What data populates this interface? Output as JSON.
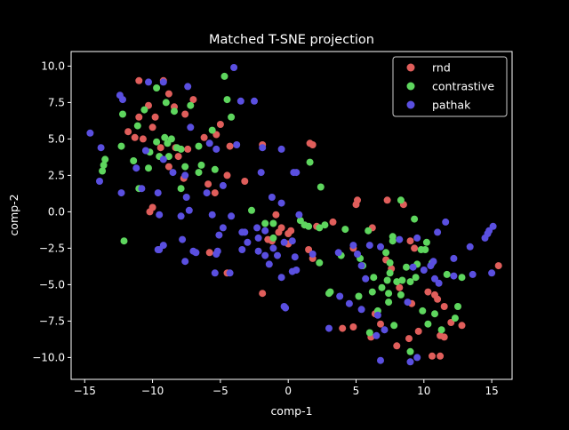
{
  "chart_data": {
    "type": "scatter",
    "title": "Matched T-SNE projection",
    "xlabel": "comp-1",
    "ylabel": "comp-2",
    "xlim": [
      -16,
      16.5
    ],
    "ylim": [
      -11.5,
      11
    ],
    "xticks": [
      -15,
      -10,
      -5,
      0,
      5,
      10,
      15
    ],
    "yticks": [
      -10.0,
      -7.5,
      -5.0,
      -2.5,
      0.0,
      2.5,
      5.0,
      7.5,
      10.0
    ],
    "xtick_labels": [
      "−15",
      "−10",
      "−5",
      "0",
      "5",
      "10",
      "15"
    ],
    "ytick_labels": [
      "−10.0",
      "−7.5",
      "−5.0",
      "−2.5",
      "0.0",
      "2.5",
      "5.0",
      "7.5",
      "10.0"
    ],
    "grid": false,
    "legend_position": "upper right",
    "series": [
      {
        "name": "rnd",
        "color": "#e05e5b",
        "points": [
          [
            -11.0,
            9.0
          ],
          [
            -9.2,
            9.0
          ],
          [
            -10.3,
            7.3
          ],
          [
            -8.4,
            7.2
          ],
          [
            -8.8,
            8.1
          ],
          [
            -11.0,
            6.5
          ],
          [
            -9.8,
            6.5
          ],
          [
            -10.0,
            5.8
          ],
          [
            -7.0,
            7.7
          ],
          [
            -7.6,
            6.7
          ],
          [
            -11.8,
            5.5
          ],
          [
            -11.3,
            5.1
          ],
          [
            -10.7,
            5.0
          ],
          [
            -9.4,
            4.4
          ],
          [
            -8.3,
            4.4
          ],
          [
            -7.4,
            4.3
          ],
          [
            -6.2,
            5.1
          ],
          [
            -5.0,
            6.0
          ],
          [
            -5.3,
            5.3
          ],
          [
            -4.3,
            4.5
          ],
          [
            -8.1,
            3.8
          ],
          [
            -8.8,
            3.1
          ],
          [
            -7.7,
            2.3
          ],
          [
            -5.9,
            1.9
          ],
          [
            -5.4,
            1.3
          ],
          [
            -4.5,
            2.5
          ],
          [
            -3.2,
            2.1
          ],
          [
            -10.0,
            0.3
          ],
          [
            -10.2,
            0.0
          ],
          [
            -1.9,
            4.6
          ],
          [
            1.6,
            4.7
          ],
          [
            1.8,
            4.6
          ],
          [
            -0.9,
            -0.2
          ],
          [
            -0.7,
            -1.4
          ],
          [
            -0.5,
            -1.1
          ],
          [
            -1.5,
            -1.9
          ],
          [
            -1.2,
            -2.0
          ],
          [
            0.0,
            -1.5
          ],
          [
            0.2,
            -1.3
          ],
          [
            0.0,
            -2.2
          ],
          [
            2.1,
            -1.0
          ],
          [
            3.3,
            -0.7
          ],
          [
            4.8,
            -2.5
          ],
          [
            5.0,
            0.5
          ],
          [
            5.1,
            0.8
          ],
          [
            6.2,
            -1.1
          ],
          [
            7.3,
            0.8
          ],
          [
            8.5,
            0.5
          ],
          [
            9.0,
            -2.0
          ],
          [
            9.3,
            -2.5
          ],
          [
            -5.8,
            -2.8
          ],
          [
            -4.5,
            -4.2
          ],
          [
            -1.9,
            -5.6
          ],
          [
            1.5,
            -2.6
          ],
          [
            1.8,
            -3.2
          ],
          [
            4.0,
            -8.0
          ],
          [
            6.1,
            -8.6
          ],
          [
            6.4,
            -7.0
          ],
          [
            7.2,
            -3.3
          ],
          [
            7.6,
            -3.9
          ],
          [
            8.2,
            -5.2
          ],
          [
            8.9,
            -8.7
          ],
          [
            9.1,
            -6.3
          ],
          [
            9.6,
            -8.2
          ],
          [
            10.3,
            -5.5
          ],
          [
            10.8,
            -5.7
          ],
          [
            11.0,
            -6.0
          ],
          [
            11.5,
            -6.5
          ],
          [
            11.2,
            -8.5
          ],
          [
            11.5,
            -8.6
          ],
          [
            12.0,
            -7.6
          ],
          [
            10.6,
            -9.9
          ],
          [
            11.2,
            -9.9
          ],
          [
            12.8,
            -7.8
          ],
          [
            15.5,
            -3.7
          ],
          [
            4.8,
            -7.9
          ],
          [
            6.8,
            -7.7
          ],
          [
            8.0,
            -9.2
          ]
        ]
      },
      {
        "name": "contrastive",
        "color": "#5ed65e",
        "points": [
          [
            -12.2,
            6.7
          ],
          [
            -11.1,
            5.9
          ],
          [
            -10.6,
            7.0
          ],
          [
            -9.7,
            8.5
          ],
          [
            -9.0,
            7.5
          ],
          [
            -8.4,
            6.9
          ],
          [
            -7.2,
            7.3
          ],
          [
            -6.6,
            4.5
          ],
          [
            -4.7,
            9.3
          ],
          [
            -4.5,
            7.7
          ],
          [
            -4.2,
            6.5
          ],
          [
            -5.6,
            5.6
          ],
          [
            -9.1,
            5.1
          ],
          [
            -8.9,
            4.7
          ],
          [
            -8.6,
            5.0
          ],
          [
            -8.2,
            4.4
          ],
          [
            -7.9,
            4.3
          ],
          [
            -9.7,
            4.8
          ],
          [
            -9.5,
            3.8
          ],
          [
            -8.8,
            3.8
          ],
          [
            -10.2,
            4.1
          ],
          [
            -12.3,
            4.5
          ],
          [
            -13.6,
            3.2
          ],
          [
            -13.5,
            3.6
          ],
          [
            -13.7,
            2.8
          ],
          [
            -11.4,
            3.5
          ],
          [
            -10.3,
            3.0
          ],
          [
            -7.6,
            3.1
          ],
          [
            -6.4,
            3.2
          ],
          [
            -5.4,
            2.9
          ],
          [
            -6.6,
            2.7
          ],
          [
            -7.9,
            1.6
          ],
          [
            -11.0,
            1.6
          ],
          [
            -12.1,
            -2.0
          ],
          [
            1.6,
            3.4
          ],
          [
            2.4,
            1.7
          ],
          [
            -2.7,
            0.1
          ],
          [
            -1.7,
            -0.8
          ],
          [
            -1.1,
            -0.8
          ],
          [
            -1.1,
            -1.8
          ],
          [
            0.9,
            -0.6
          ],
          [
            1.2,
            -0.9
          ],
          [
            1.5,
            -1.0
          ],
          [
            2.7,
            -0.9
          ],
          [
            2.3,
            -3.5
          ],
          [
            3.0,
            -5.6
          ],
          [
            3.1,
            -5.5
          ],
          [
            5.3,
            -3.2
          ],
          [
            5.5,
            -3.7
          ],
          [
            5.2,
            -5.8
          ],
          [
            6.2,
            -5.5
          ],
          [
            6.9,
            -5.2
          ],
          [
            6.3,
            -4.5
          ],
          [
            7.5,
            -4.2
          ],
          [
            7.5,
            -3.5
          ],
          [
            7.3,
            -4.7
          ],
          [
            7.4,
            -5.6
          ],
          [
            8.0,
            -4.8
          ],
          [
            8.4,
            -4.7
          ],
          [
            9.0,
            -4.8
          ],
          [
            8.7,
            -3.8
          ],
          [
            9.5,
            -3.6
          ],
          [
            9.8,
            -2.6
          ],
          [
            10.1,
            -2.6
          ],
          [
            10.2,
            -2.1
          ],
          [
            10.6,
            -3.5
          ],
          [
            9.4,
            -4.5
          ],
          [
            8.3,
            -5.7
          ],
          [
            7.4,
            -6.2
          ],
          [
            6.6,
            -6.8
          ],
          [
            6.0,
            -8.3
          ],
          [
            7.8,
            -7.8
          ],
          [
            10.8,
            -7.0
          ],
          [
            11.3,
            -8.1
          ],
          [
            12.5,
            -6.5
          ],
          [
            12.8,
            -4.5
          ],
          [
            11.7,
            -4.3
          ],
          [
            12.3,
            -7.3
          ],
          [
            9.0,
            -9.6
          ],
          [
            10.3,
            -7.7
          ],
          [
            9.9,
            -6.8
          ],
          [
            9.3,
            -0.5
          ],
          [
            8.3,
            0.8
          ],
          [
            7.7,
            -1.7
          ],
          [
            7.7,
            -2.0
          ],
          [
            7.2,
            -2.8
          ],
          [
            5.9,
            -1.3
          ],
          [
            4.2,
            -1.2
          ],
          [
            2.3,
            -1.1
          ],
          [
            3.9,
            -3.0
          ]
        ]
      },
      {
        "name": "pathak",
        "color": "#5a4fe0",
        "points": [
          [
            -14.6,
            5.4
          ],
          [
            -13.8,
            4.4
          ],
          [
            -13.9,
            2.1
          ],
          [
            -12.4,
            8.0
          ],
          [
            -12.2,
            7.7
          ],
          [
            -10.3,
            8.9
          ],
          [
            -9.2,
            8.9
          ],
          [
            -7.4,
            8.6
          ],
          [
            -4.0,
            9.9
          ],
          [
            -3.5,
            7.6
          ],
          [
            -2.5,
            7.6
          ],
          [
            -7.2,
            5.8
          ],
          [
            -5.8,
            4.7
          ],
          [
            -3.8,
            4.6
          ],
          [
            -5.3,
            4.3
          ],
          [
            -1.9,
            4.4
          ],
          [
            -0.5,
            4.3
          ],
          [
            -10.5,
            4.2
          ],
          [
            -11.2,
            3.0
          ],
          [
            -9.2,
            3.6
          ],
          [
            -8.5,
            2.7
          ],
          [
            -7.6,
            2.5
          ],
          [
            -4.8,
            1.8
          ],
          [
            -2.0,
            2.7
          ],
          [
            -1.2,
            1.0
          ],
          [
            0.4,
            2.7
          ],
          [
            0.6,
            2.7
          ],
          [
            -10.8,
            1.6
          ],
          [
            -12.3,
            1.3
          ],
          [
            -9.6,
            1.3
          ],
          [
            -7.5,
            1.0
          ],
          [
            -6.0,
            1.3
          ],
          [
            -7.3,
            0.1
          ],
          [
            -7.9,
            -0.3
          ],
          [
            -5.6,
            -0.2
          ],
          [
            -4.2,
            -0.3
          ],
          [
            -9.5,
            -0.2
          ],
          [
            -0.5,
            0.6
          ],
          [
            0.8,
            -0.2
          ],
          [
            -2.3,
            -1.1
          ],
          [
            -1.7,
            -1.3
          ],
          [
            -2.2,
            -1.8
          ],
          [
            -3.2,
            -1.4
          ],
          [
            -3.4,
            -1.4
          ],
          [
            -4.8,
            -1.1
          ],
          [
            -5.1,
            -1.6
          ],
          [
            -7.8,
            -1.9
          ],
          [
            -9.2,
            -2.3
          ],
          [
            -9.5,
            -2.6
          ],
          [
            -9.6,
            -2.6
          ],
          [
            -7.6,
            -3.4
          ],
          [
            -7.0,
            -2.7
          ],
          [
            -6.8,
            -2.8
          ],
          [
            -5.3,
            -2.9
          ],
          [
            -5.2,
            -2.7
          ],
          [
            -3.4,
            -2.6
          ],
          [
            -3.0,
            -2.1
          ],
          [
            -2.2,
            -2.7
          ],
          [
            -1.1,
            -2.5
          ],
          [
            -0.3,
            -2.1
          ],
          [
            0.3,
            -2.0
          ],
          [
            -1.7,
            -3.0
          ],
          [
            -0.8,
            -3.0
          ],
          [
            -1.4,
            -3.6
          ],
          [
            0.5,
            -3.1
          ],
          [
            1.8,
            -2.9
          ],
          [
            3.7,
            -2.8
          ],
          [
            0.6,
            -4.0
          ],
          [
            -0.5,
            -4.5
          ],
          [
            0.3,
            -4.1
          ],
          [
            -5.4,
            -4.2
          ],
          [
            -4.3,
            -4.2
          ],
          [
            -0.2,
            -6.6
          ],
          [
            -0.3,
            -6.5
          ],
          [
            3.0,
            -8.0
          ],
          [
            4.8,
            -2.3
          ],
          [
            5.1,
            -2.9
          ],
          [
            6.0,
            -2.3
          ],
          [
            6.8,
            -2.4
          ],
          [
            8.2,
            -1.9
          ],
          [
            9.5,
            -1.8
          ],
          [
            11.0,
            -1.4
          ],
          [
            11.6,
            -0.7
          ],
          [
            12.2,
            -3.2
          ],
          [
            13.4,
            -2.4
          ],
          [
            10.5,
            -3.7
          ],
          [
            10.7,
            -3.4
          ],
          [
            9.2,
            -3.8
          ],
          [
            5.4,
            -3.7
          ],
          [
            5.7,
            -4.6
          ],
          [
            8.8,
            -6.2
          ],
          [
            10.0,
            -4.0
          ],
          [
            10.8,
            -4.6
          ],
          [
            11.1,
            -4.9
          ],
          [
            12.2,
            -4.4
          ],
          [
            13.6,
            -4.3
          ],
          [
            14.5,
            -1.8
          ],
          [
            14.8,
            -1.3
          ],
          [
            15.1,
            -1.0
          ],
          [
            14.7,
            -1.5
          ],
          [
            15.0,
            -4.2
          ],
          [
            9.0,
            -10.3
          ],
          [
            9.5,
            -10.0
          ],
          [
            6.8,
            -10.2
          ],
          [
            6.5,
            -8.5
          ],
          [
            7.1,
            -8.1
          ],
          [
            6.6,
            -7.1
          ],
          [
            5.4,
            -6.7
          ],
          [
            3.8,
            -5.8
          ],
          [
            4.5,
            -6.3
          ]
        ]
      }
    ]
  }
}
